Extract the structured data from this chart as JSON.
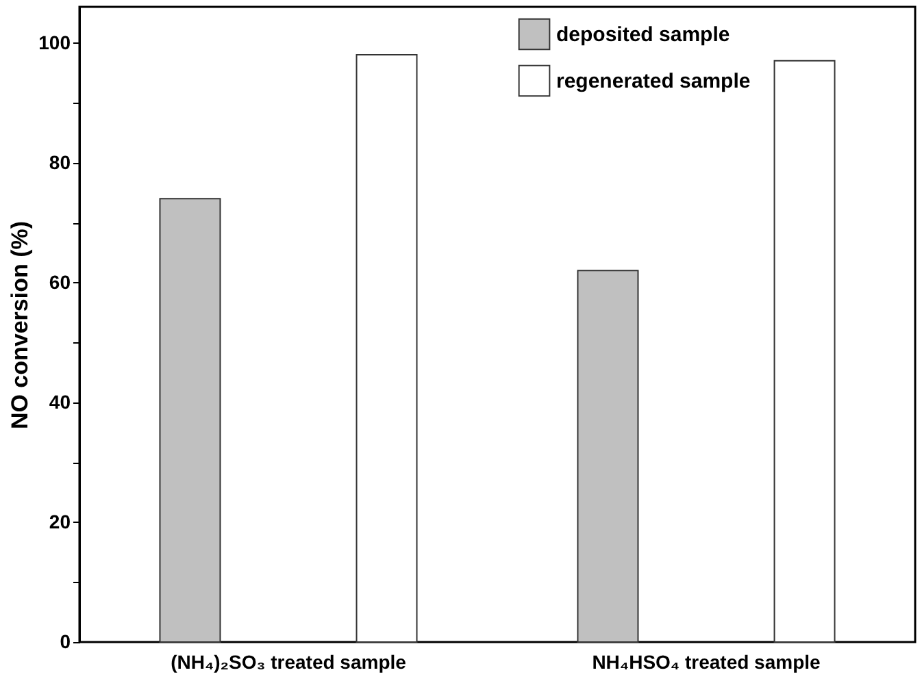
{
  "chart_data": {
    "type": "bar",
    "ylabel": "NO conversion (%)",
    "categories": [
      "(NH₄)₂SO₃ treated sample",
      "NH₄HSO₄ treated sample"
    ],
    "series": [
      {
        "name": "deposited sample",
        "color": "#c0c0c0",
        "values": [
          74,
          62
        ]
      },
      {
        "name": "regenerated sample",
        "color": "#ffffff",
        "values": [
          98,
          97
        ]
      }
    ],
    "ylim": [
      0,
      106
    ],
    "yticks": [
      0,
      {
        "value": 10,
        "label": null
      },
      20,
      {
        "value": 30,
        "label": null
      },
      40,
      {
        "value": 50,
        "label": null
      },
      60,
      {
        "value": 70,
        "label": null
      },
      80,
      {
        "value": 90,
        "label": null
      },
      100
    ],
    "grid": false,
    "legend": "top"
  }
}
